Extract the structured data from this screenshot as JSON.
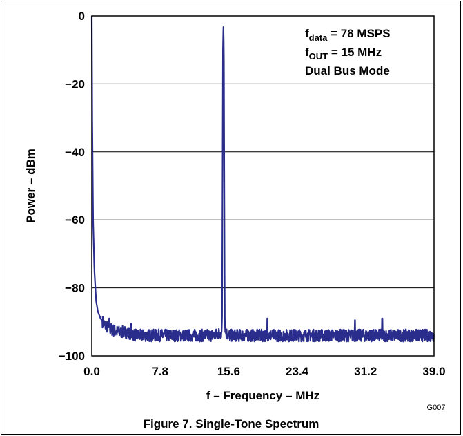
{
  "chart_data": {
    "type": "line",
    "title": "",
    "xlabel": "f – Frequency – MHz",
    "ylabel": "Power – dBm",
    "xlim": [
      0,
      39
    ],
    "ylim": [
      -100,
      0
    ],
    "x_ticks": [
      "0.0",
      "7.8",
      "15.6",
      "23.4",
      "31.2",
      "39.0"
    ],
    "y_ticks": [
      "0",
      "−20",
      "−40",
      "−60",
      "−80",
      "−100"
    ],
    "y_tick_values": [
      0,
      -20,
      -40,
      -60,
      -80,
      -100
    ],
    "grid": "horizontal",
    "series_color": "#2a2d8c",
    "annotations": [
      {
        "base": "f",
        "sub": "data",
        "rest": " = 78 MSPS"
      },
      {
        "base": "f",
        "sub": "OUT",
        "rest": " = 15 MHz"
      },
      {
        "base": "Dual Bus Mode",
        "sub": "",
        "rest": ""
      }
    ],
    "series": [
      {
        "x": [
          0.0,
          0.05,
          0.15,
          0.3,
          0.5,
          0.7,
          1.0,
          1.5,
          2.0,
          3.0,
          4.0,
          5.0,
          7.8,
          10.0,
          12.0,
          14.0,
          14.8,
          14.85,
          14.9,
          14.95,
          15.0,
          15.05,
          15.1,
          15.15,
          15.2,
          15.6,
          17.0,
          19.0,
          23.4,
          27.0,
          29.0,
          30.0,
          31.2,
          33.0,
          35.0,
          37.0,
          39.0
        ],
        "y": [
          0,
          -30,
          -60,
          -75,
          -84,
          -87,
          -89,
          -91,
          -92,
          -93,
          -93,
          -94,
          -94,
          -94,
          -94,
          -94,
          -93,
          -88,
          -50,
          -10,
          -3,
          -10,
          -50,
          -88,
          -93,
          -94,
          -94,
          -94,
          -94,
          -94,
          -94,
          -94,
          -94,
          -94,
          -94,
          -94,
          -94
        ]
      }
    ],
    "spurs": [
      {
        "x": 2.0,
        "y": -89
      },
      {
        "x": 4.5,
        "y": -90.5
      },
      {
        "x": 20.0,
        "y": -89
      },
      {
        "x": 30.0,
        "y": -89.5
      },
      {
        "x": 33.1,
        "y": -89
      }
    ],
    "code": "G007",
    "caption": "Figure 7. Single-Tone Spectrum"
  }
}
